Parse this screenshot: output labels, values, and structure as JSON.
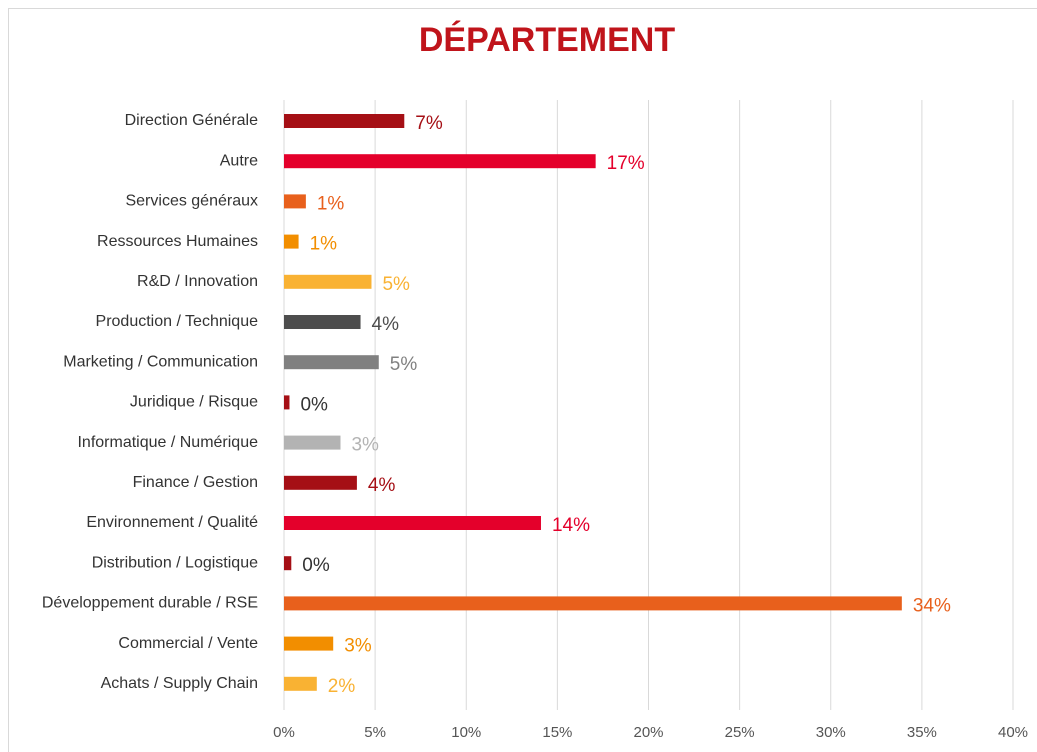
{
  "chart_data": {
    "type": "hbar",
    "title": "DÉPARTEMENT",
    "categories": [
      "Direction Générale",
      "Autre",
      "Services généraux",
      "Ressources Humaines",
      "R&D / Innovation",
      "Production / Technique",
      "Marketing  / Communication",
      "Juridique / Risque",
      "Informatique / Numérique",
      "Finance / Gestion",
      "Environnement / Qualité",
      "Distribution / Logistique",
      "Développement durable / RSE",
      "Commercial / Vente",
      "Achats / Supply Chain"
    ],
    "values": [
      6.6,
      17.1,
      1.2,
      0.8,
      4.8,
      4.2,
      5.2,
      0.3,
      3.1,
      4.0,
      14.1,
      0.4,
      33.9,
      2.7,
      1.8
    ],
    "value_labels": [
      "7%",
      "17%",
      "1%",
      "1%",
      "5%",
      "4%",
      "5%",
      "0%",
      "3%",
      "4%",
      "14%",
      "0%",
      "34%",
      "3%",
      "2%"
    ],
    "colors": [
      "#a50f15",
      "#e4002b",
      "#e8601c",
      "#f28e00",
      "#f9b233",
      "#4d4d4d",
      "#808080",
      "#a50f15",
      "#b3b3b3",
      "#a50f15",
      "#e4002b",
      "#a50f15",
      "#e8601c",
      "#f28e00",
      "#f9b233"
    ],
    "label_colors": [
      "#a50f15",
      "#e4002b",
      "#e8601c",
      "#f28e00",
      "#f9b233",
      "#4d4d4d",
      "#808080",
      "#333333",
      "#b3b3b3",
      "#a50f15",
      "#e4002b",
      "#333333",
      "#e8601c",
      "#f28e00",
      "#f9b233"
    ],
    "xlim": [
      0,
      40
    ],
    "xticks": [
      {
        "value": 0,
        "label": "0%"
      },
      {
        "value": 5,
        "label": "5%"
      },
      {
        "value": 10,
        "label": "10%"
      },
      {
        "value": 15,
        "label": "15%"
      },
      {
        "value": 20,
        "label": "20%"
      },
      {
        "value": 25,
        "label": "25%"
      },
      {
        "value": 30,
        "label": "30%"
      },
      {
        "value": 35,
        "label": "35%"
      },
      {
        "value": 40,
        "label": "40%"
      }
    ],
    "grid": true
  }
}
